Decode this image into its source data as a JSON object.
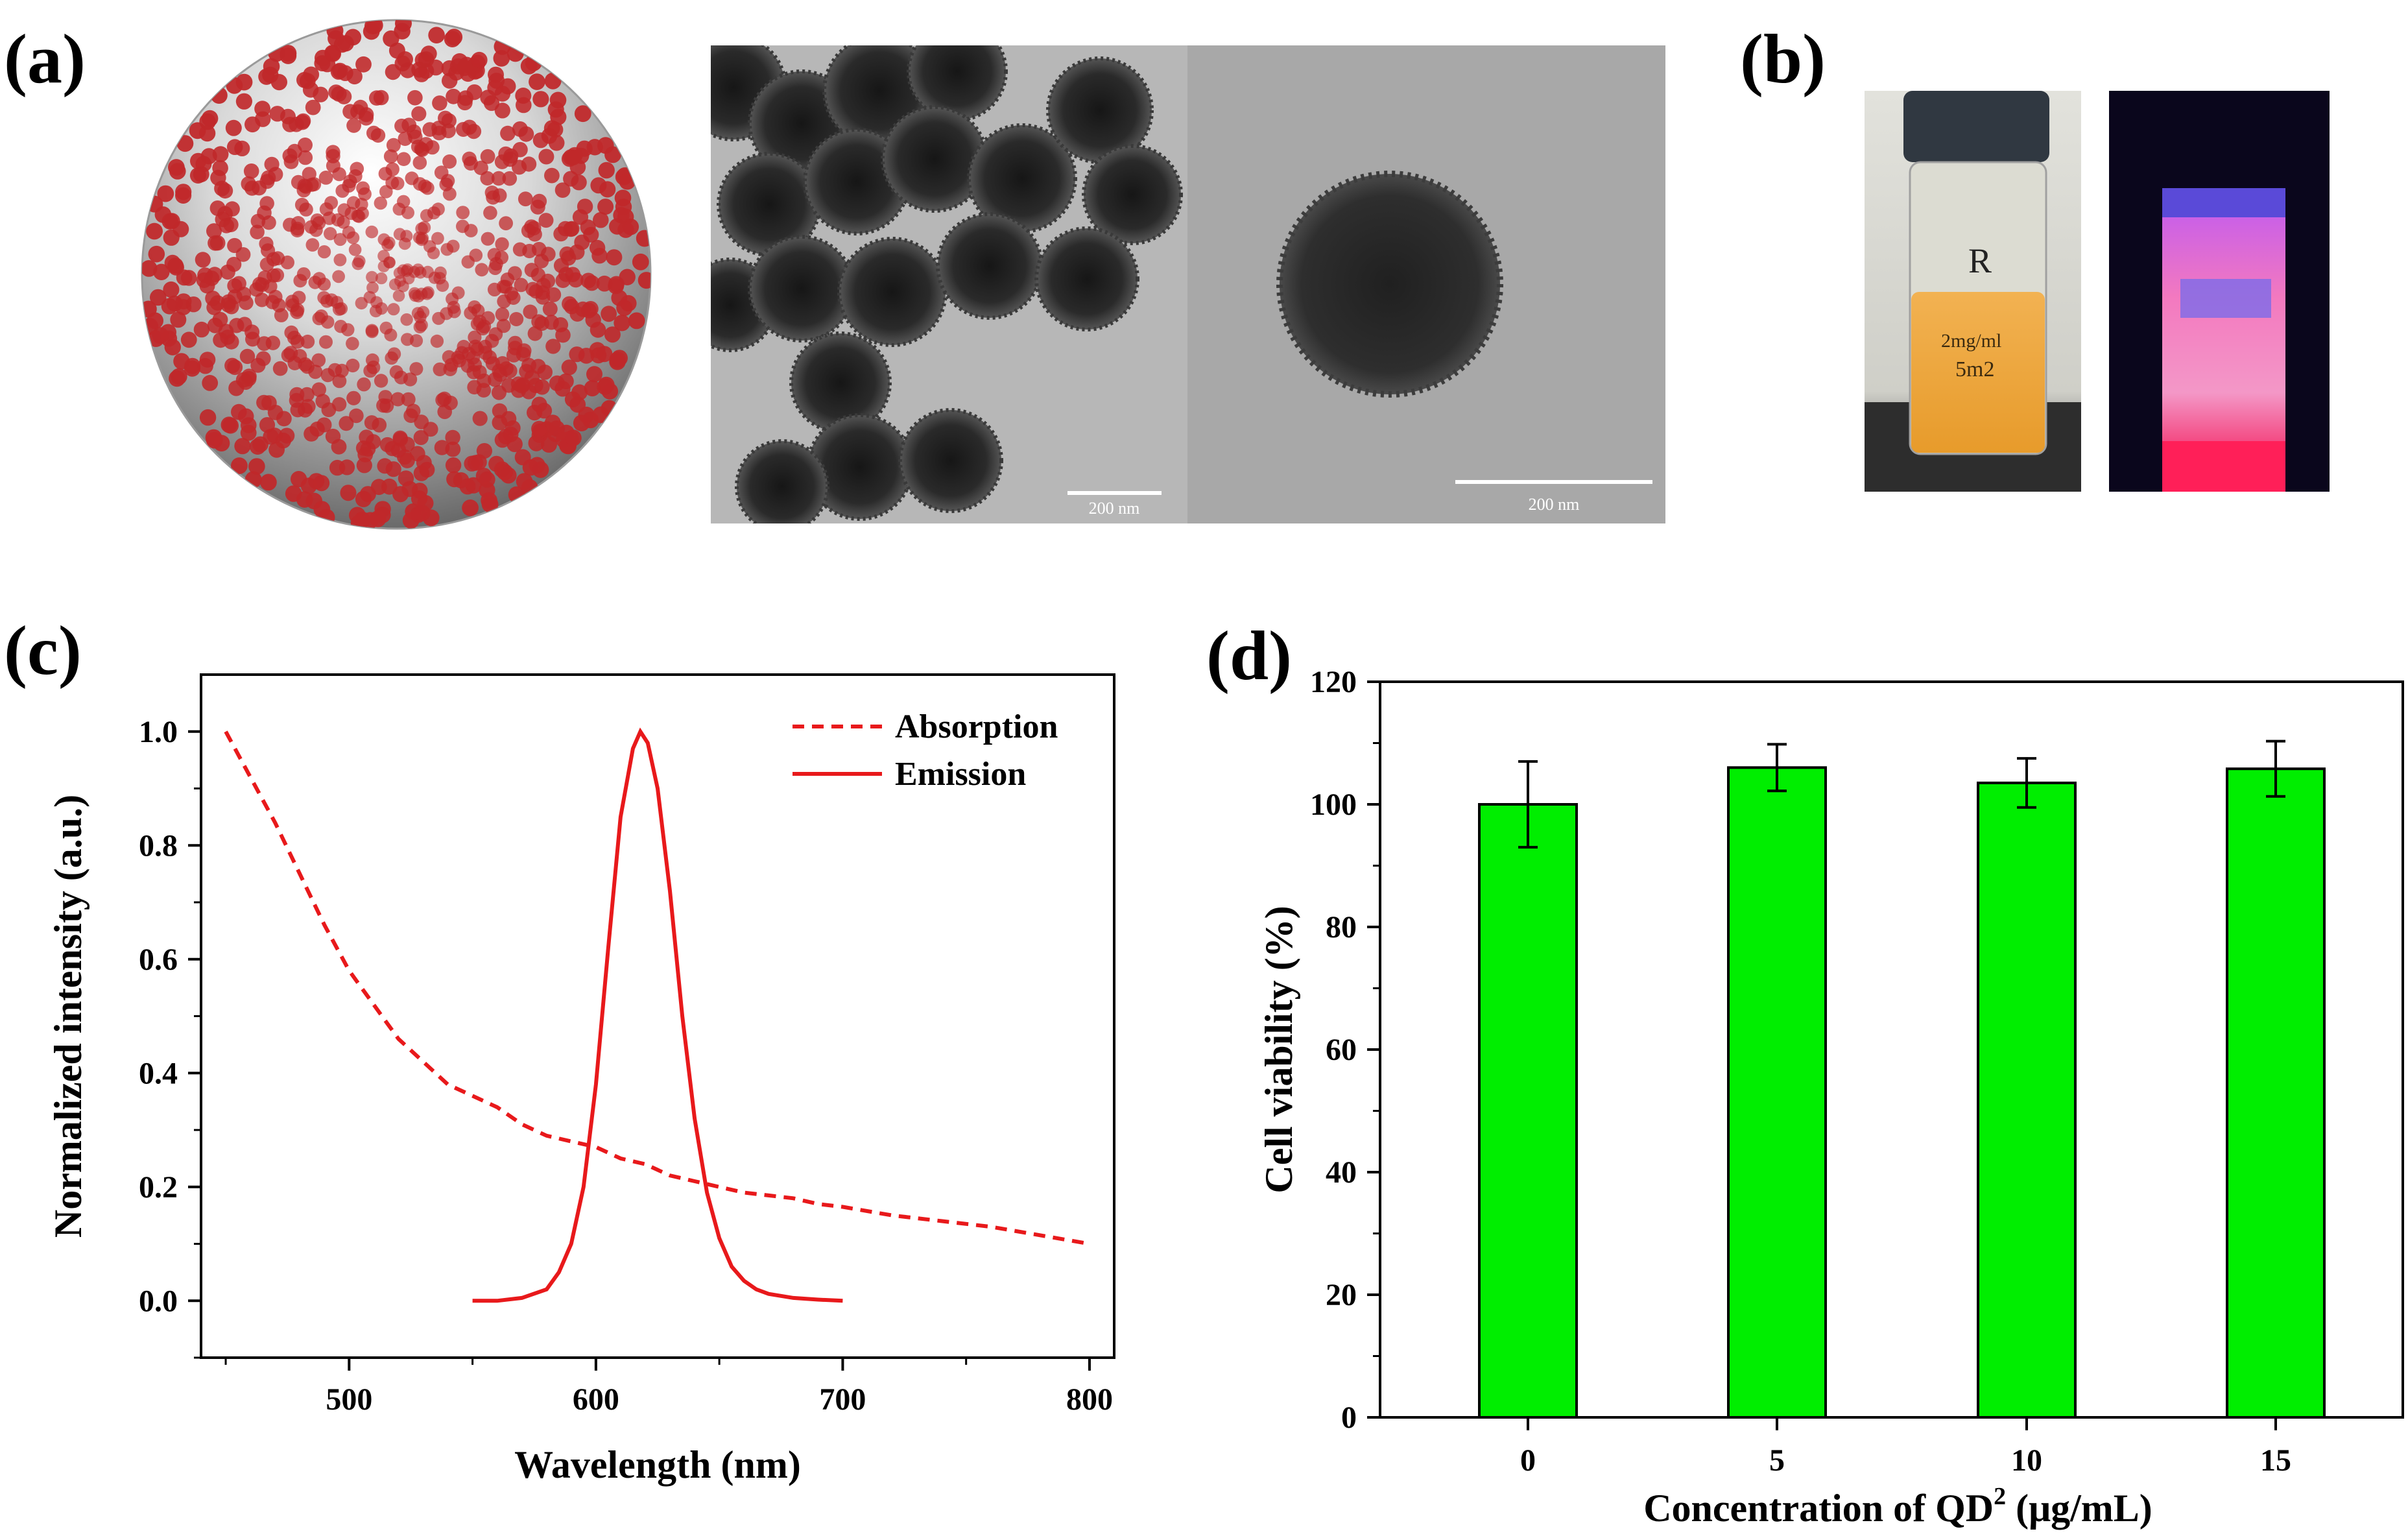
{
  "panel_labels": {
    "a": "(a)",
    "b": "(b)",
    "c": "(c)",
    "d": "(d)"
  },
  "panel_a": {
    "scale_bar_left": "200 nm",
    "scale_bar_right": "200 nm"
  },
  "panel_b": {
    "vial_handwriting": [
      "R",
      "2mg/ml",
      "5m2"
    ]
  },
  "colors": {
    "line_red": "#e8191b",
    "bar_green": "#00ee00",
    "sphere_dots": "#c0282a",
    "uv_glow": "#ff3a8a"
  },
  "chart_data": [
    {
      "type": "line",
      "xlabel": "Wavelength (nm)",
      "ylabel": "Normalized intensity (a.u.)",
      "xlim": [
        440,
        810
      ],
      "ylim": [
        -0.1,
        1.1
      ],
      "xticks": [
        500,
        600,
        700,
        800
      ],
      "yticks": [
        0.0,
        0.2,
        0.4,
        0.6,
        0.8,
        1.0
      ],
      "ytick_labels": [
        "0.0",
        "0.2",
        "0.4",
        "0.6",
        "0.8",
        "1.0"
      ],
      "legend_position": "top-right",
      "series": [
        {
          "name": "Absorption",
          "style": "dashed",
          "x": [
            450,
            460,
            470,
            480,
            490,
            500,
            510,
            520,
            530,
            540,
            550,
            560,
            570,
            580,
            590,
            600,
            610,
            620,
            630,
            640,
            650,
            660,
            670,
            680,
            690,
            700,
            720,
            740,
            760,
            780,
            800
          ],
          "y": [
            1.0,
            0.92,
            0.84,
            0.75,
            0.66,
            0.58,
            0.52,
            0.46,
            0.42,
            0.38,
            0.36,
            0.34,
            0.31,
            0.29,
            0.28,
            0.27,
            0.25,
            0.24,
            0.22,
            0.21,
            0.2,
            0.19,
            0.185,
            0.18,
            0.17,
            0.165,
            0.15,
            0.14,
            0.13,
            0.115,
            0.1
          ]
        },
        {
          "name": "Emission",
          "style": "solid",
          "x": [
            550,
            560,
            570,
            580,
            585,
            590,
            595,
            600,
            605,
            610,
            615,
            618,
            621,
            625,
            630,
            635,
            640,
            645,
            650,
            655,
            660,
            665,
            670,
            680,
            690,
            700
          ],
          "y": [
            0.0,
            0.0,
            0.005,
            0.02,
            0.05,
            0.1,
            0.2,
            0.38,
            0.62,
            0.85,
            0.97,
            1.0,
            0.98,
            0.9,
            0.72,
            0.5,
            0.32,
            0.19,
            0.11,
            0.06,
            0.035,
            0.02,
            0.012,
            0.005,
            0.002,
            0.0
          ]
        }
      ]
    },
    {
      "type": "bar",
      "xlabel": "Concentration of QD",
      "xlabel_sup": "2",
      "xlabel_unit": " (μg/mL)",
      "ylabel": "Cell viability (%)",
      "ylim": [
        0,
        120
      ],
      "yticks": [
        0,
        20,
        40,
        60,
        80,
        100,
        120
      ],
      "categories": [
        "0",
        "5",
        "10",
        "15"
      ],
      "values": [
        100,
        106,
        103.5,
        105.8
      ],
      "errors": [
        7,
        3.8,
        4,
        4.5
      ]
    }
  ]
}
